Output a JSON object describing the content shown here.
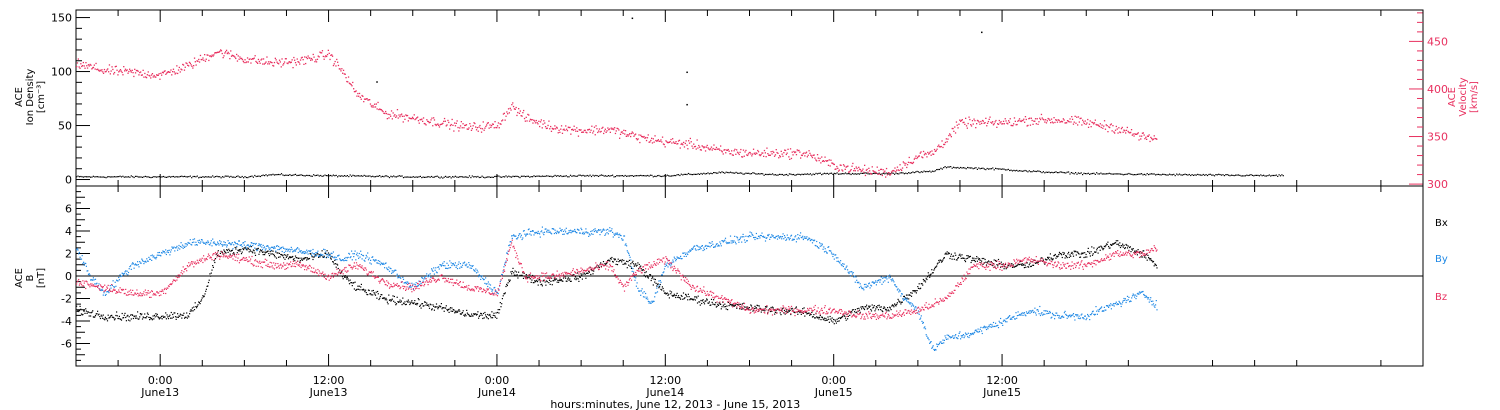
{
  "colors": {
    "black": "#000000",
    "pink": "#e8305f",
    "blue": "#1e88e5"
  },
  "chart_data": [
    {
      "type": "scatter",
      "panel": "top",
      "ylabel_left": [
        "ACE",
        "Ion Density",
        "[cm⁻³]"
      ],
      "ylabel_right": [
        "ACE",
        "Velocity",
        "[km/s]"
      ],
      "ylim_left": [
        -6,
        157
      ],
      "yticks_left": [
        0,
        50,
        100,
        150
      ],
      "ylim_right": [
        298,
        483
      ],
      "yticks_right": [
        300,
        350,
        400,
        450
      ],
      "series": [
        {
          "axis": "left",
          "color": "black",
          "values": [
            [
              -6,
              3
            ],
            [
              0,
              3
            ],
            [
              6,
              3
            ],
            [
              8,
              5
            ],
            [
              12,
              4
            ],
            [
              18,
              3
            ],
            [
              24,
              3
            ],
            [
              30,
              4
            ],
            [
              36,
              4
            ],
            [
              40,
              7
            ],
            [
              44,
              5
            ],
            [
              48,
              6
            ],
            [
              52,
              6
            ],
            [
              55,
              8
            ],
            [
              56,
              12
            ],
            [
              60,
              10
            ],
            [
              62,
              8
            ],
            [
              66,
              6
            ],
            [
              72,
              5
            ],
            [
              80,
              4
            ]
          ]
        },
        {
          "axis": "right",
          "color": "pink",
          "values": [
            [
              -6,
              427
            ],
            [
              -4,
              420
            ],
            [
              -2,
              418
            ],
            [
              0,
              415
            ],
            [
              2,
              425
            ],
            [
              4,
              440
            ],
            [
              6,
              432
            ],
            [
              8,
              428
            ],
            [
              10,
              430
            ],
            [
              12,
              437
            ],
            [
              13,
              418
            ],
            [
              14,
              395
            ],
            [
              16,
              375
            ],
            [
              18,
              370
            ],
            [
              20,
              365
            ],
            [
              22,
              360
            ],
            [
              24,
              362
            ],
            [
              25,
              383
            ],
            [
              26,
              370
            ],
            [
              28,
              360
            ],
            [
              30,
              357
            ],
            [
              32,
              358
            ],
            [
              34,
              350
            ],
            [
              36,
              345
            ],
            [
              38,
              342
            ],
            [
              40,
              335
            ],
            [
              42,
              333
            ],
            [
              44,
              333
            ],
            [
              46,
              333
            ],
            [
              48,
              320
            ],
            [
              50,
              315
            ],
            [
              52,
              313
            ],
            [
              54,
              330
            ],
            [
              55,
              333
            ],
            [
              56,
              348
            ],
            [
              57,
              365
            ],
            [
              60,
              365
            ],
            [
              62,
              368
            ],
            [
              64,
              368
            ],
            [
              66,
              365
            ],
            [
              68,
              360
            ],
            [
              70,
              350
            ],
            [
              71,
              348
            ]
          ]
        },
        {
          "axis": "left",
          "color": "black",
          "values": [
            [
              33.6,
              150
            ],
            [
              15.4,
              91
            ],
            [
              37.5,
              70
            ],
            [
              58.5,
              137
            ],
            [
              37.5,
              100
            ]
          ]
        }
      ]
    },
    {
      "type": "line",
      "panel": "bottom",
      "ylabel": [
        "ACE",
        "B",
        "[nT]"
      ],
      "ylim": [
        -8,
        8
      ],
      "yticks": [
        -6,
        -4,
        -2,
        0,
        2,
        4,
        6
      ],
      "legend": [
        "Bx",
        "By",
        "Bz"
      ],
      "series": [
        {
          "name": "Bx",
          "color": "black",
          "values": [
            [
              -6,
              -3
            ],
            [
              -4,
              -3.5
            ],
            [
              -2,
              -3.6
            ],
            [
              0,
              -3.5
            ],
            [
              2,
              -3.4
            ],
            [
              3,
              -2
            ],
            [
              4,
              2
            ],
            [
              6,
              2.5
            ],
            [
              8,
              2
            ],
            [
              10,
              1.5
            ],
            [
              12,
              2
            ],
            [
              13,
              0
            ],
            [
              14,
              -1
            ],
            [
              16,
              -2
            ],
            [
              18,
              -2.3
            ],
            [
              20,
              -2.8
            ],
            [
              22,
              -3.4
            ],
            [
              24,
              -3.5
            ],
            [
              25,
              0.5
            ],
            [
              27,
              -0.5
            ],
            [
              30,
              0
            ],
            [
              32,
              1.5
            ],
            [
              34,
              1
            ],
            [
              36,
              -1.5
            ],
            [
              38,
              -2
            ],
            [
              40,
              -2.5
            ],
            [
              42,
              -2.8
            ],
            [
              44,
              -3
            ],
            [
              46,
              -3.2
            ],
            [
              48,
              -4
            ],
            [
              50,
              -2.8
            ],
            [
              52,
              -2.8
            ],
            [
              54,
              -1
            ],
            [
              56,
              2
            ],
            [
              58,
              1.5
            ],
            [
              60,
              1
            ],
            [
              62,
              1
            ],
            [
              64,
              2
            ],
            [
              66,
              2
            ],
            [
              68,
              3
            ],
            [
              70,
              2
            ],
            [
              71,
              1
            ]
          ]
        },
        {
          "name": "By",
          "color": "blue",
          "values": [
            [
              -6,
              2.5
            ],
            [
              -5,
              0
            ],
            [
              -4,
              -1.5
            ],
            [
              -2,
              1
            ],
            [
              0,
              2
            ],
            [
              2,
              3
            ],
            [
              4,
              3
            ],
            [
              6,
              2.8
            ],
            [
              8,
              2.6
            ],
            [
              10,
              2.2
            ],
            [
              12,
              2
            ],
            [
              13,
              1.5
            ],
            [
              14,
              2
            ],
            [
              16,
              1
            ],
            [
              18,
              -1
            ],
            [
              20,
              1
            ],
            [
              22,
              1
            ],
            [
              24,
              -1.5
            ],
            [
              25,
              3.5
            ],
            [
              27,
              4
            ],
            [
              30,
              4
            ],
            [
              32,
              4
            ],
            [
              33,
              3.5
            ],
            [
              34,
              -1
            ],
            [
              35,
              -2.5
            ],
            [
              36,
              1
            ],
            [
              38,
              2.5
            ],
            [
              40,
              3
            ],
            [
              42,
              3.5
            ],
            [
              44,
              3.5
            ],
            [
              46,
              3.5
            ],
            [
              48,
              2
            ],
            [
              50,
              -1
            ],
            [
              52,
              0
            ],
            [
              53,
              -2
            ],
            [
              54,
              -3
            ],
            [
              55,
              -6.5
            ],
            [
              56,
              -5.5
            ],
            [
              58,
              -5
            ],
            [
              60,
              -4
            ],
            [
              62,
              -3
            ],
            [
              64,
              -3.5
            ],
            [
              66,
              -3.5
            ],
            [
              68,
              -2.5
            ],
            [
              70,
              -1.5
            ],
            [
              71,
              -2.5
            ]
          ]
        },
        {
          "name": "Bz",
          "color": "pink",
          "values": [
            [
              -6,
              -0.5
            ],
            [
              -4,
              -1
            ],
            [
              -2,
              -1.5
            ],
            [
              0,
              -1.5
            ],
            [
              2,
              1
            ],
            [
              4,
              2
            ],
            [
              6,
              1.5
            ],
            [
              8,
              1
            ],
            [
              10,
              1
            ],
            [
              12,
              0
            ],
            [
              14,
              1
            ],
            [
              16,
              -0.5
            ],
            [
              18,
              -1
            ],
            [
              20,
              0
            ],
            [
              22,
              -1
            ],
            [
              24,
              -1.5
            ],
            [
              25,
              3
            ],
            [
              26,
              0
            ],
            [
              28,
              0
            ],
            [
              30,
              0.5
            ],
            [
              32,
              1
            ],
            [
              33,
              -1
            ],
            [
              34,
              0.5
            ],
            [
              36,
              1.5
            ],
            [
              38,
              -1
            ],
            [
              40,
              -2
            ],
            [
              42,
              -3
            ],
            [
              44,
              -3
            ],
            [
              46,
              -3
            ],
            [
              48,
              -3
            ],
            [
              50,
              -3.5
            ],
            [
              52,
              -3.5
            ],
            [
              54,
              -3
            ],
            [
              56,
              -2
            ],
            [
              58,
              1
            ],
            [
              60,
              1
            ],
            [
              62,
              1.5
            ],
            [
              64,
              1
            ],
            [
              66,
              1
            ],
            [
              68,
              2
            ],
            [
              70,
              2
            ],
            [
              71,
              2.5
            ]
          ]
        }
      ]
    }
  ],
  "xaxis": {
    "range_hours": [
      -6,
      90
    ],
    "ticks": [
      {
        "h": 0,
        "time": "0:00",
        "date": "June13"
      },
      {
        "h": 12,
        "time": "12:00",
        "date": "June13"
      },
      {
        "h": 24,
        "time": "0:00",
        "date": "June14"
      },
      {
        "h": 36,
        "time": "12:00",
        "date": "June14"
      },
      {
        "h": 48,
        "time": "0:00",
        "date": "June15"
      },
      {
        "h": 60,
        "time": "12:00",
        "date": "June15"
      }
    ],
    "xlabel": "hours:minutes, June 12, 2013 - June 15, 2013"
  }
}
